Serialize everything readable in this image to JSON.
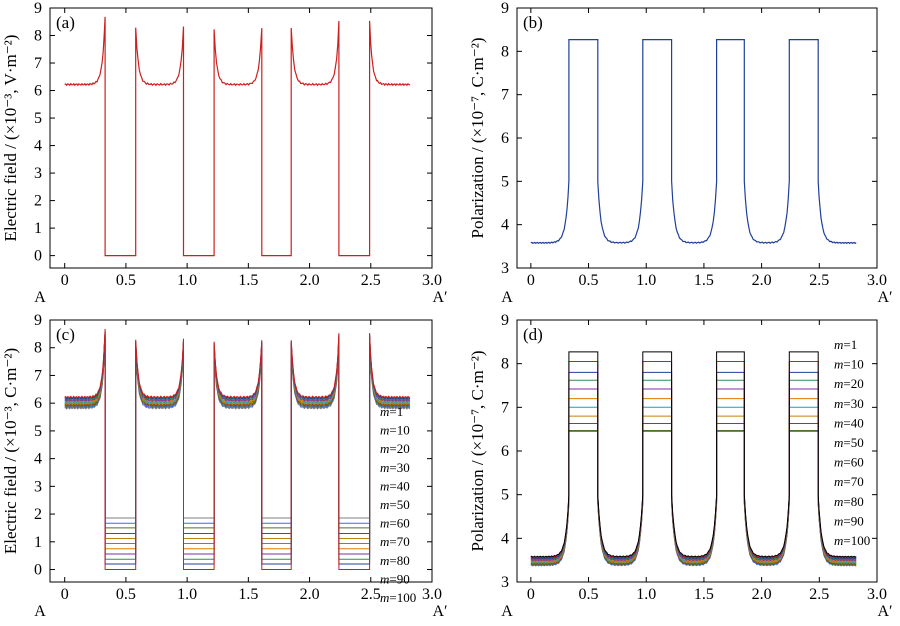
{
  "panels": [
    {
      "tag": "(a)",
      "ylabel": "Electric field / (×10⁻³, V·m⁻²)",
      "xticks": [
        "0",
        "0.5",
        "1.0",
        "1.5",
        "2.0",
        "2.5",
        "3.0"
      ],
      "yticks": [
        "0",
        "1",
        "2",
        "3",
        "4",
        "5",
        "6",
        "7",
        "8",
        "9"
      ],
      "xend_left": "A",
      "xend_right": "A′",
      "legend": [],
      "box": {
        "l": 50,
        "t": 8,
        "r": 432,
        "b": 268
      },
      "xrange": [
        -0.12,
        3.0
      ],
      "yrange": [
        -0.45,
        9
      ],
      "profile": "field",
      "series_color": "#cc1f1f",
      "multi": false
    },
    {
      "tag": "(b)",
      "ylabel": "Polarization / (×10⁻⁷, C·m⁻²)",
      "xticks": [
        "0",
        "0.5",
        "1.0",
        "1.5",
        "2.0",
        "2.5",
        "3.0"
      ],
      "yticks": [
        "3",
        "4",
        "5",
        "6",
        "7",
        "8",
        "9"
      ],
      "xend_left": "A",
      "xend_right": "A′",
      "legend": [],
      "box": {
        "l": 517,
        "t": 8,
        "r": 877,
        "b": 268
      },
      "xrange": [
        -0.12,
        3.0
      ],
      "yrange": [
        3,
        9
      ],
      "profile": "polar",
      "series_color": "#1f3f99",
      "multi": false
    },
    {
      "tag": "(c)",
      "ylabel": "Electric field / (×10⁻³, C·m⁻²)",
      "xticks": [
        "0",
        "0.5",
        "1.0",
        "1.5",
        "2.0",
        "2.5",
        "3.0"
      ],
      "yticks": [
        "0",
        "1",
        "2",
        "3",
        "4",
        "5",
        "6",
        "7",
        "8",
        "9"
      ],
      "xend_left": "A",
      "xend_right": "A′",
      "legend": [
        "m=1",
        "m=10",
        "m=20",
        "m=30",
        "m=40",
        "m=50",
        "m=60",
        "m=70",
        "m=80",
        "m=90",
        "m=100"
      ],
      "box": {
        "l": 50,
        "t": 320,
        "r": 432,
        "b": 582
      },
      "xrange": [
        -0.12,
        3.0
      ],
      "yrange": [
        -0.45,
        9
      ],
      "profile": "field",
      "series_color": "#cc1f1f",
      "multi": true
    },
    {
      "tag": "(d)",
      "ylabel": "Polarization / (×10⁻⁷, C·m⁻²)",
      "xticks": [
        "0",
        "0.5",
        "1.0",
        "1.5",
        "2.0",
        "2.5",
        "3.0"
      ],
      "yticks": [
        "3",
        "4",
        "5",
        "6",
        "7",
        "8",
        "9"
      ],
      "xend_left": "A",
      "xend_right": "A′",
      "legend": [
        "m=1",
        "m=10",
        "m=20",
        "m=30",
        "m=40",
        "m=50",
        "m=60",
        "m=70",
        "m=80",
        "m=90",
        "m=100"
      ],
      "box": {
        "l": 517,
        "t": 320,
        "r": 877,
        "b": 582
      },
      "xrange": [
        -0.12,
        3.0
      ],
      "yrange": [
        3,
        9
      ],
      "profile": "polar",
      "series_color": "#1f3f99",
      "multi": true
    }
  ],
  "chart_data": [
    {
      "type": "line",
      "title": "(a)",
      "xlabel": "",
      "ylabel": "Electric field / (×10⁻³, V·m⁻²)",
      "xlim": [
        -0.12,
        3.0
      ],
      "ylim": [
        -0.45,
        9
      ],
      "segments_x": [
        [
          0,
          0.33
        ],
        [
          0.58,
          0.97
        ],
        [
          1.22,
          1.61
        ],
        [
          1.85,
          2.24
        ],
        [
          2.49,
          2.82
        ]
      ],
      "gaps_x": [
        [
          0.33,
          0.58
        ],
        [
          0.97,
          1.22
        ],
        [
          1.61,
          1.85
        ],
        [
          2.24,
          2.49
        ]
      ],
      "x": [
        0,
        0.05,
        0.1,
        0.15,
        0.2,
        0.25,
        0.3,
        0.33,
        0.58,
        0.65,
        0.75,
        0.85,
        0.93,
        0.97,
        1.22,
        1.3,
        1.4,
        1.5,
        1.58,
        1.61,
        1.85,
        1.92,
        2.02,
        2.12,
        2.21,
        2.24,
        2.49,
        2.56,
        2.65,
        2.75,
        2.82
      ],
      "series": [
        {
          "values": [
            6.3,
            6.25,
            6.3,
            6.4,
            6.6,
            7.0,
            7.8,
            8.7,
            8.3,
            6.6,
            6.2,
            6.25,
            7.0,
            8.3,
            8.2,
            6.5,
            6.2,
            6.25,
            7.2,
            8.3,
            8.3,
            6.6,
            6.2,
            6.25,
            7.2,
            8.5,
            8.5,
            6.6,
            6.3,
            6.25,
            6.3
          ]
        }
      ],
      "gap_value": 0
    },
    {
      "type": "line",
      "title": "(b)",
      "xlabel": "",
      "ylabel": "Polarization / (×10⁻⁷, C·m⁻²)",
      "xlim": [
        -0.12,
        3.0
      ],
      "ylim": [
        3,
        9
      ],
      "x": [
        0,
        0.05,
        0.15,
        0.25,
        0.3,
        0.33,
        0.58,
        0.62,
        0.7,
        0.8,
        0.93,
        0.97,
        1.22,
        1.3,
        1.45,
        1.58,
        1.61,
        1.85,
        1.92,
        2.05,
        2.2,
        2.24,
        2.49,
        2.55,
        2.7,
        2.82
      ],
      "series": [
        {
          "values": [
            3.62,
            3.6,
            3.65,
            3.9,
            4.6,
            8.27,
            8.27,
            4.4,
            3.7,
            3.58,
            3.9,
            8.25,
            8.25,
            4.2,
            3.6,
            3.9,
            8.25,
            8.27,
            4.3,
            3.6,
            3.9,
            8.27,
            8.27,
            4.0,
            3.62,
            3.62
          ]
        }
      ],
      "plateau_ranges": [
        [
          0.33,
          0.58
        ],
        [
          0.97,
          1.22
        ],
        [
          1.61,
          1.85
        ],
        [
          2.24,
          2.49
        ]
      ],
      "plateau_value": 8.27
    },
    {
      "type": "line",
      "title": "(c)",
      "xlabel": "",
      "ylabel": "Electric field / (×10⁻³, C·m⁻²)",
      "xlim": [
        -0.12,
        3.0
      ],
      "ylim": [
        -0.45,
        9
      ],
      "series_names": [
        "m=1",
        "m=10",
        "m=20",
        "m=30",
        "m=40",
        "m=50",
        "m=60",
        "m=70",
        "m=80",
        "m=90",
        "m=100"
      ],
      "gap_levels": [
        0.0,
        0.2,
        0.37,
        0.56,
        0.75,
        0.94,
        1.12,
        1.3,
        1.5,
        1.67,
        1.86
      ],
      "baseline_offsets": [
        0.0,
        -0.04,
        -0.08,
        -0.12,
        -0.16,
        -0.2,
        -0.24,
        -0.28,
        -0.32,
        -0.36,
        -0.4
      ],
      "colors": [
        "#cc1f1f",
        "#1f3f99",
        "#2e8b57",
        "#7b2fa8",
        "#e07b00",
        "#1f9fb0",
        "#b8860b",
        "#8b4513",
        "#556b2f",
        "#4169e1",
        "#7f7f7f"
      ]
    },
    {
      "type": "line",
      "title": "(d)",
      "xlabel": "",
      "ylabel": "Polarization / (×10⁻⁷, C·m⁻²)",
      "xlim": [
        -0.12,
        3.0
      ],
      "ylim": [
        3,
        9
      ],
      "series_names": [
        "m=1",
        "m=10",
        "m=20",
        "m=30",
        "m=40",
        "m=50",
        "m=60",
        "m=70",
        "m=80",
        "m=90",
        "m=100"
      ],
      "plateau_levels": [
        8.27,
        8.05,
        7.8,
        7.62,
        7.42,
        7.2,
        7.0,
        6.8,
        6.63,
        6.47,
        6.45
      ],
      "baseline_offsets": [
        0.0,
        -0.02,
        -0.04,
        -0.06,
        -0.08,
        -0.1,
        -0.12,
        -0.14,
        -0.16,
        -0.18,
        -0.2
      ],
      "colors": [
        "#000000",
        "#cc1f1f",
        "#1f3f99",
        "#2e8b57",
        "#7b2fa8",
        "#e07b00",
        "#1f9fb0",
        "#b8860b",
        "#8b4513",
        "#556b2f",
        "#4169e1"
      ]
    }
  ]
}
